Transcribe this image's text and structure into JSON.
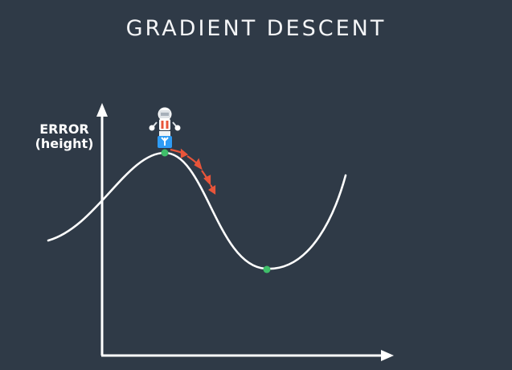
{
  "title": "GRADIENT DESCENT",
  "axis": {
    "y_label_line1": "ERROR",
    "y_label_line2": "(height)"
  },
  "icons": {
    "robot": "robot-icon",
    "steps": "red-arrow-steps"
  },
  "colors": {
    "background": "#2f3a47",
    "curve": "#ffffff",
    "point": "#3fbf6a",
    "step": "#e8553a"
  }
}
